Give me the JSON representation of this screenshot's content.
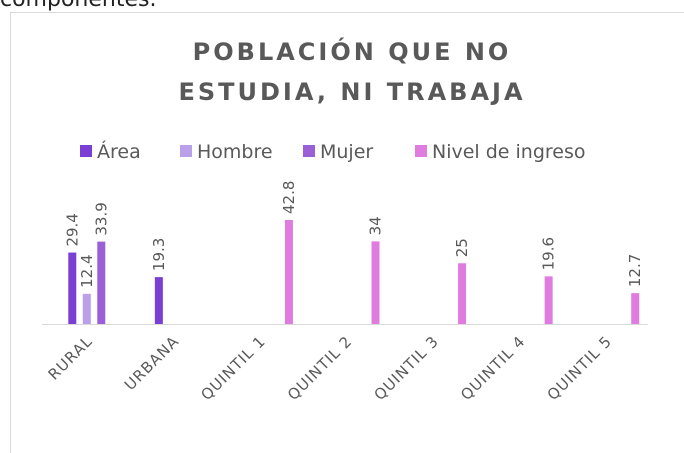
{
  "caption": "componentes.",
  "chart_data": {
    "type": "bar",
    "title_lines": [
      "POBLACIÓN QUE NO",
      "ESTUDIA, NI TRABAJA"
    ],
    "categories": [
      "RURAL",
      "URBANA",
      "QUINTIL 1",
      "QUINTIL 2",
      "QUINTIL 3",
      "QUINTIL 4",
      "QUINTIL 5"
    ],
    "series": [
      {
        "name": "Área",
        "color": "#7b3fd4",
        "values": [
          29.4,
          19.3,
          null,
          null,
          null,
          null,
          null
        ]
      },
      {
        "name": "Hombre",
        "color": "#b9a0e8",
        "values": [
          12.4,
          null,
          null,
          null,
          null,
          null,
          null
        ]
      },
      {
        "name": "Mujer",
        "color": "#9b5fd6",
        "values": [
          33.9,
          null,
          null,
          null,
          null,
          null,
          null
        ]
      },
      {
        "name": "Nivel de ingreso",
        "color": "#e07ce0",
        "values": [
          null,
          null,
          42.8,
          34,
          25,
          19.6,
          12.7
        ]
      }
    ],
    "legend": "top"
  }
}
